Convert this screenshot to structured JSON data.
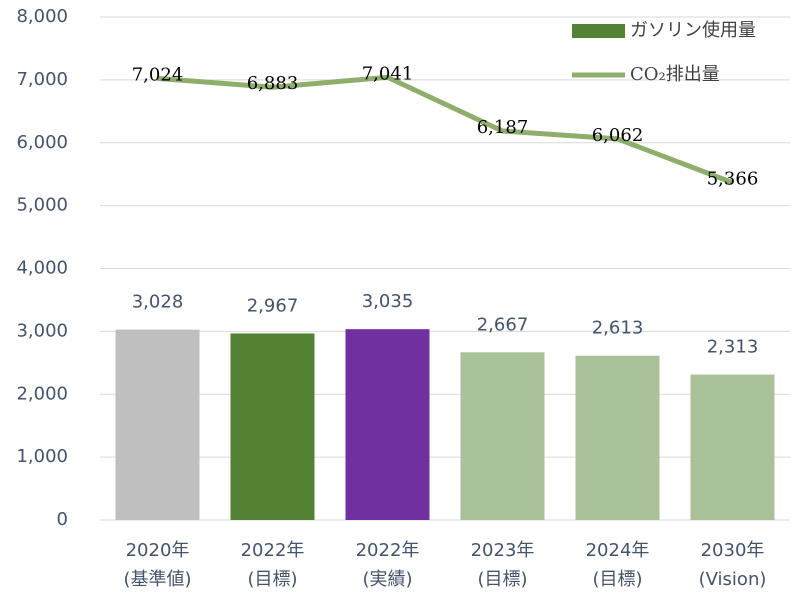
{
  "chart_data": {
    "type": "combo",
    "categories": [
      [
        "2020年",
        "(基準値)"
      ],
      [
        "2022年",
        "(目標)"
      ],
      [
        "2022年",
        "(実績)"
      ],
      [
        "2023年",
        "(目標)"
      ],
      [
        "2024年",
        "(目標)"
      ],
      [
        "2030年",
        "(Vision)"
      ]
    ],
    "series": [
      {
        "name": "ガソリン使用量",
        "type": "bar",
        "color": "#548235",
        "colors": [
          "#bfbfbf",
          "#548235",
          "#7030a0",
          "#a9c199",
          "#a9c199",
          "#a9c199"
        ],
        "values": [
          3028,
          2967,
          3035,
          2667,
          2613,
          2313
        ],
        "value_labels": [
          "3,028",
          "2,967",
          "3,035",
          "2,667",
          "2,613",
          "2,313"
        ]
      },
      {
        "name": "CO₂排出量",
        "type": "line",
        "color": "#8fae6b",
        "values": [
          7024,
          6883,
          7041,
          6187,
          6062,
          5366
        ],
        "value_labels": [
          "7,024",
          "6,883",
          "7,041",
          "6,187",
          "6,062",
          "5,366"
        ]
      }
    ],
    "ylim": [
      0,
      8000
    ],
    "yticks": [
      0,
      {
        "value": 1000,
        "label": "1,000"
      },
      {
        "value": 2000,
        "label": "2,000"
      },
      {
        "value": 3000,
        "label": "3,000"
      },
      {
        "value": 4000,
        "label": "4,000"
      },
      {
        "value": 5000,
        "label": "5,000"
      },
      {
        "value": 6000,
        "label": "6,000"
      },
      {
        "value": 7000,
        "label": "7,000"
      },
      {
        "value": 8000,
        "label": "8,000"
      }
    ],
    "grid": true,
    "legend": "upper right"
  }
}
